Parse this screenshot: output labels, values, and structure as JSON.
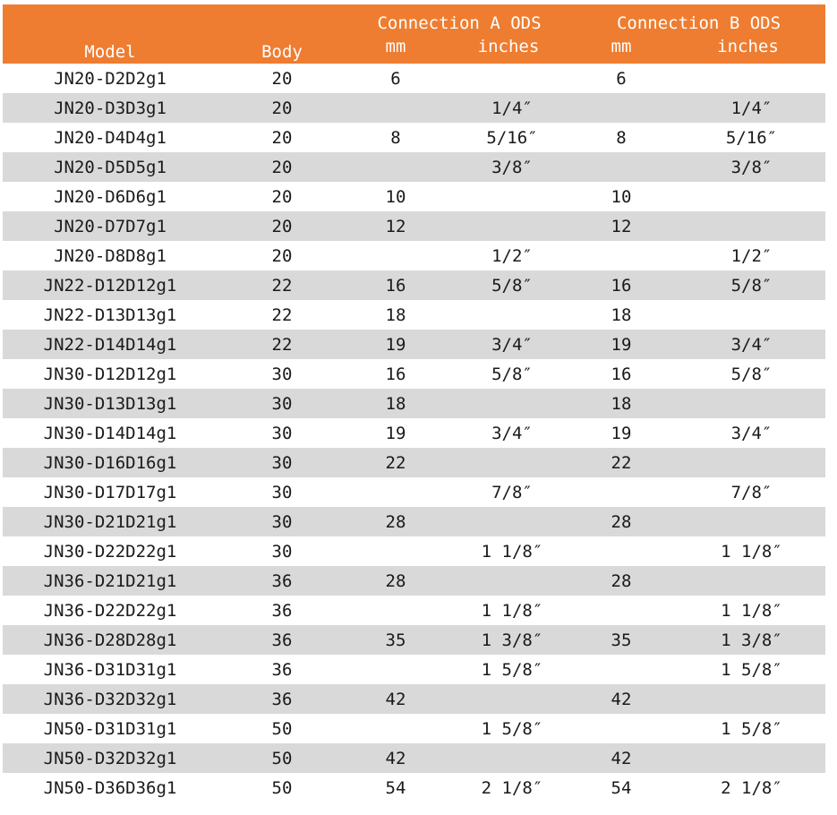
{
  "table": {
    "headers": {
      "model": "Model",
      "body": "Body",
      "conn_a": "Connection A ODS",
      "conn_b": "Connection B ODS",
      "a_mm": "mm",
      "a_inches": "inches",
      "b_mm": "mm",
      "b_inches": "inches"
    },
    "colors": {
      "header_bg": "#ee7d31",
      "stripe": "#d9d9d9",
      "header_text": "#ffffff"
    },
    "rows": [
      {
        "model": "JN20-D2D2g1",
        "body": "20",
        "a_mm": "6",
        "a_in": "",
        "b_mm": "6",
        "b_in": ""
      },
      {
        "model": "JN20-D3D3g1",
        "body": "20",
        "a_mm": "",
        "a_in": "1/4″",
        "b_mm": "",
        "b_in": "1/4″"
      },
      {
        "model": "JN20-D4D4g1",
        "body": "20",
        "a_mm": "8",
        "a_in": "5/16″",
        "b_mm": "8",
        "b_in": "5/16″"
      },
      {
        "model": "JN20-D5D5g1",
        "body": "20",
        "a_mm": "",
        "a_in": "3/8″",
        "b_mm": "",
        "b_in": "3/8″"
      },
      {
        "model": "JN20-D6D6g1",
        "body": "20",
        "a_mm": "10",
        "a_in": "",
        "b_mm": "10",
        "b_in": ""
      },
      {
        "model": "JN20-D7D7g1",
        "body": "20",
        "a_mm": "12",
        "a_in": "",
        "b_mm": "12",
        "b_in": ""
      },
      {
        "model": "JN20-D8D8g1",
        "body": "20",
        "a_mm": "",
        "a_in": "1/2″",
        "b_mm": "",
        "b_in": "1/2″"
      },
      {
        "model": "JN22-D12D12g1",
        "body": "22",
        "a_mm": "16",
        "a_in": "5/8″",
        "b_mm": "16",
        "b_in": "5/8″"
      },
      {
        "model": "JN22-D13D13g1",
        "body": "22",
        "a_mm": "18",
        "a_in": "",
        "b_mm": "18",
        "b_in": ""
      },
      {
        "model": "JN22-D14D14g1",
        "body": "22",
        "a_mm": "19",
        "a_in": "3/4″",
        "b_mm": "19",
        "b_in": "3/4″"
      },
      {
        "model": "JN30-D12D12g1",
        "body": "30",
        "a_mm": "16",
        "a_in": "5/8″",
        "b_mm": "16",
        "b_in": "5/8″"
      },
      {
        "model": "JN30-D13D13g1",
        "body": "30",
        "a_mm": "18",
        "a_in": "",
        "b_mm": "18",
        "b_in": ""
      },
      {
        "model": "JN30-D14D14g1",
        "body": "30",
        "a_mm": "19",
        "a_in": "3/4″",
        "b_mm": "19",
        "b_in": "3/4″"
      },
      {
        "model": "JN30-D16D16g1",
        "body": "30",
        "a_mm": "22",
        "a_in": "",
        "b_mm": "22",
        "b_in": ""
      },
      {
        "model": "JN30-D17D17g1",
        "body": "30",
        "a_mm": "",
        "a_in": "7/8″",
        "b_mm": "",
        "b_in": "7/8″"
      },
      {
        "model": "JN30-D21D21g1",
        "body": "30",
        "a_mm": "28",
        "a_in": "",
        "b_mm": "28",
        "b_in": ""
      },
      {
        "model": "JN30-D22D22g1",
        "body": "30",
        "a_mm": "",
        "a_in": "1 1/8″",
        "b_mm": "",
        "b_in": "1 1/8″"
      },
      {
        "model": "JN36-D21D21g1",
        "body": "36",
        "a_mm": "28",
        "a_in": "",
        "b_mm": "28",
        "b_in": ""
      },
      {
        "model": "JN36-D22D22g1",
        "body": "36",
        "a_mm": "",
        "a_in": "1 1/8″",
        "b_mm": "",
        "b_in": "1 1/8″"
      },
      {
        "model": "JN36-D28D28g1",
        "body": "36",
        "a_mm": "35",
        "a_in": "1 3/8″",
        "b_mm": "35",
        "b_in": "1 3/8″"
      },
      {
        "model": "JN36-D31D31g1",
        "body": "36",
        "a_mm": "",
        "a_in": "1 5/8″",
        "b_mm": "",
        "b_in": "1 5/8″"
      },
      {
        "model": "JN36-D32D32g1",
        "body": "36",
        "a_mm": "42",
        "a_in": "",
        "b_mm": "42",
        "b_in": ""
      },
      {
        "model": "JN50-D31D31g1",
        "body": "50",
        "a_mm": "",
        "a_in": "1 5/8″",
        "b_mm": "",
        "b_in": "1 5/8″"
      },
      {
        "model": "JN50-D32D32g1",
        "body": "50",
        "a_mm": "42",
        "a_in": "",
        "b_mm": "42",
        "b_in": ""
      },
      {
        "model": "JN50-D36D36g1",
        "body": "50",
        "a_mm": "54",
        "a_in": "2 1/8″",
        "b_mm": "54",
        "b_in": "2 1/8″"
      }
    ]
  }
}
